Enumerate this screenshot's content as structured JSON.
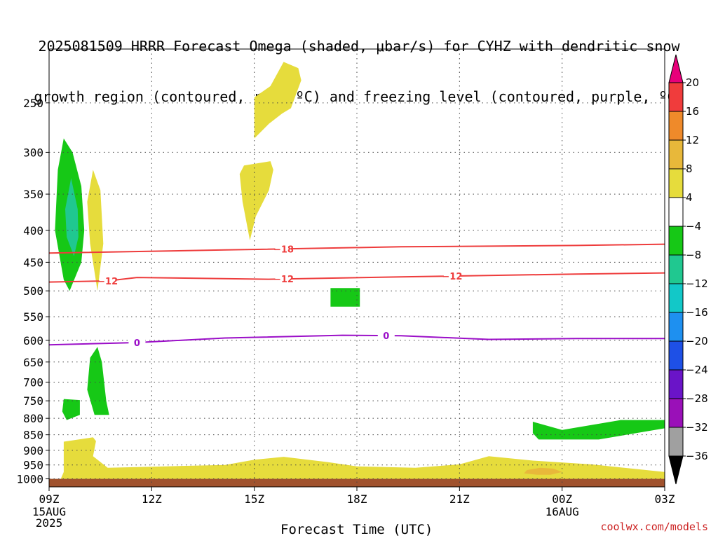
{
  "chart_data": {
    "type": "heatmap",
    "title": "2025081509 HRRR Forecast Omega (shaded, μbar/s) for CYHZ with dendritic snow",
    "subtitle": "growth region (contoured, red, ºC) and freezing level (contoured, purple, ºC)",
    "xlabel": "Forecast Time (UTC)",
    "ylabel": "",
    "x_ticks": [
      "09Z",
      "12Z",
      "15Z",
      "18Z",
      "21Z",
      "00Z",
      "03Z"
    ],
    "x_subticks": {
      "0": [
        "15AUG",
        "2025"
      ],
      "5": [
        "16AUG"
      ]
    },
    "y_axis": {
      "scale": "log",
      "inverted": true,
      "ylim": [
        1030,
        205
      ]
    },
    "y_ticks": [
      250,
      300,
      350,
      400,
      450,
      500,
      550,
      600,
      650,
      700,
      750,
      800,
      850,
      900,
      950,
      1000
    ],
    "grid": true,
    "colorbar": {
      "labels": [
        "20",
        "16",
        "12",
        "8",
        "4",
        "−4",
        "−8",
        "−12",
        "−16",
        "−20",
        "−24",
        "−28",
        "−32",
        "−36"
      ],
      "colors": [
        "#e8007a",
        "#f03c3c",
        "#ef8a2a",
        "#e8b83a",
        "#e6dc3c",
        "#ffffff",
        "#16c816",
        "#20c890",
        "#12c8c8",
        "#1e90f0",
        "#1e50e6",
        "#6a14c8",
        "#9a10b8",
        "#a0a0a0",
        "#000000"
      ]
    },
    "contours": {
      "dendritic": {
        "color": "#ee3c3c",
        "labels": [
          "−12",
          "−18"
        ],
        "levels": [
          {
            "value": "−18",
            "points": [
              [
                0,
                435
              ],
              [
                12,
                430
              ],
              [
                24,
                425
              ],
              [
                36,
                423
              ],
              [
                42,
                421
              ]
            ],
            "labels_at": [
              16
            ]
          },
          {
            "value": "−12",
            "points": [
              [
                0,
                484
              ],
              [
                4,
                482
              ],
              [
                6,
                476
              ],
              [
                15,
                479
              ],
              [
                24,
                475
              ],
              [
                36,
                470
              ],
              [
                42,
                468
              ]
            ],
            "labels_at": [
              4,
              16,
              27.5
            ]
          }
        ]
      },
      "freezing": {
        "color": "#9b0fc8",
        "label": "0",
        "points": [
          [
            0,
            610
          ],
          [
            6,
            605
          ],
          [
            12,
            595
          ],
          [
            20,
            589
          ],
          [
            24,
            590
          ],
          [
            30,
            598
          ],
          [
            36,
            596
          ],
          [
            42,
            596
          ]
        ],
        "labels_at": [
          6,
          23
        ]
      }
    },
    "shaded_regions": [
      {
        "value_class": "-4 to -8",
        "color": "#16c816",
        "hour_p": [
          [
            1,
            285
          ],
          [
            1.6,
            300
          ],
          [
            2.2,
            340
          ],
          [
            2.4,
            400
          ],
          [
            2.2,
            450
          ],
          [
            1.4,
            500
          ],
          [
            1,
            480
          ],
          [
            0.4,
            400
          ],
          [
            0.6,
            320
          ]
        ]
      },
      {
        "value_class": "-8 to -12",
        "color": "#20c890",
        "hour_p": [
          [
            1.5,
            330
          ],
          [
            1.95,
            370
          ],
          [
            2.0,
            410
          ],
          [
            1.7,
            440
          ],
          [
            1.2,
            410
          ],
          [
            1.1,
            370
          ]
        ]
      },
      {
        "value_class": "-4 to -8",
        "color": "#16c816",
        "hour_p": [
          [
            1,
            745
          ],
          [
            2.1,
            748
          ],
          [
            2.1,
            790
          ],
          [
            1.2,
            805
          ],
          [
            0.9,
            780
          ]
        ]
      },
      {
        "value_class": "4 to 8",
        "color": "#e6dc3c",
        "hour_p": [
          [
            3,
            320
          ],
          [
            3.5,
            345
          ],
          [
            3.7,
            420
          ],
          [
            3.3,
            500
          ],
          [
            2.8,
            420
          ],
          [
            2.6,
            360
          ]
        ]
      },
      {
        "value_class": "-4 to -8",
        "color": "#16c816",
        "hour_p": [
          [
            3.3,
            615
          ],
          [
            3.6,
            650
          ],
          [
            3.9,
            750
          ],
          [
            4.1,
            790
          ],
          [
            3.1,
            790
          ],
          [
            2.6,
            720
          ],
          [
            2.8,
            640
          ]
        ]
      },
      {
        "value_class": "4 to 8",
        "color": "#e6dc3c",
        "hour_p": [
          [
            13.3,
            315
          ],
          [
            15.1,
            310
          ],
          [
            15.3,
            320
          ],
          [
            15.0,
            345
          ],
          [
            14.1,
            380
          ],
          [
            13.7,
            415
          ],
          [
            13.2,
            360
          ],
          [
            13.0,
            325
          ]
        ]
      },
      {
        "value_class": "4 to 8",
        "color": "#e6dc3c",
        "hour_p": [
          [
            14.0,
            245
          ],
          [
            15.1,
            235
          ],
          [
            16.0,
            215
          ],
          [
            17.0,
            220
          ],
          [
            17.2,
            230
          ],
          [
            16.5,
            255
          ],
          [
            15.9,
            260
          ],
          [
            15.0,
            270
          ],
          [
            14.0,
            285
          ]
        ]
      },
      {
        "value_class": "-4 to -8",
        "color": "#16c816",
        "hour_p": [
          [
            19.2,
            495
          ],
          [
            21.2,
            495
          ],
          [
            21.2,
            530
          ],
          [
            19.2,
            530
          ]
        ]
      },
      {
        "value_class": "-4 to -8",
        "color": "#16c816",
        "hour_p": [
          [
            33.0,
            810
          ],
          [
            35.0,
            835
          ],
          [
            39.0,
            805
          ],
          [
            42,
            805
          ],
          [
            42,
            830
          ],
          [
            37.5,
            865
          ],
          [
            33.4,
            865
          ],
          [
            33,
            845
          ]
        ]
      },
      {
        "value_class": "4 to 8",
        "color": "#e6dc3c",
        "hour_p": [
          [
            1,
            872
          ],
          [
            3.0,
            858
          ],
          [
            3.2,
            870
          ],
          [
            3.0,
            920
          ],
          [
            4,
            960
          ],
          [
            8,
            955
          ],
          [
            12,
            950
          ],
          [
            14,
            932
          ],
          [
            16,
            922
          ],
          [
            19,
            940
          ],
          [
            21,
            955
          ],
          [
            25,
            960
          ],
          [
            28,
            948
          ],
          [
            30,
            920
          ],
          [
            33,
            935
          ],
          [
            37,
            948
          ],
          [
            42,
            975
          ],
          [
            42,
            1000
          ],
          [
            0.8,
            1000
          ],
          [
            1,
            975
          ]
        ]
      },
      {
        "value_class": "8 to 12",
        "color": "#e8b83a",
        "hour_p": [
          [
            32.6,
            968
          ],
          [
            33.5,
            960
          ],
          [
            34.4,
            963
          ],
          [
            35.0,
            975
          ],
          [
            34.2,
            985
          ],
          [
            33.3,
            985
          ],
          [
            32.4,
            980
          ]
        ]
      }
    ],
    "terrain": {
      "color": "#a0522d",
      "top_hpa": 1000
    }
  },
  "credit": "coolwx.com/models"
}
